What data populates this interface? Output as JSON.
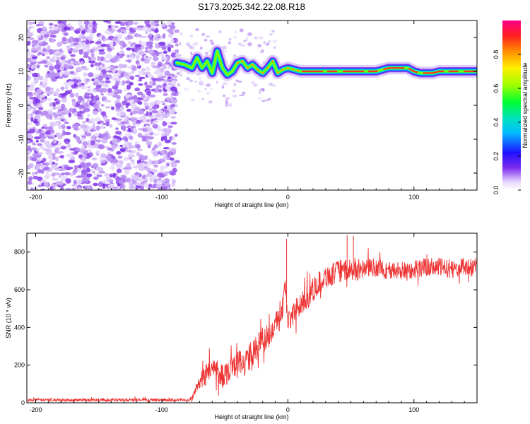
{
  "title": "S173.2025.342.22.08.R18",
  "colors": {
    "snr_line": "#ee3333",
    "axis": "#000000",
    "background": "#ffffff"
  },
  "chart_data": [
    {
      "type": "heatmap",
      "name": "spectrogram",
      "xlabel": "Height of straight line (km)",
      "ylabel": "Frequency (Hz)",
      "xlim": [
        -207,
        150
      ],
      "ylim": [
        -25,
        25
      ],
      "x_ticks": [
        "-200",
        "-100",
        "0",
        "100"
      ],
      "x_tick_values": [
        -200,
        -100,
        0,
        100
      ],
      "y_ticks": [
        "20",
        "10",
        "0",
        "-10",
        "-20"
      ],
      "y_tick_values": [
        20,
        10,
        0,
        -10,
        -20
      ],
      "noise_region_x": [
        -207,
        -88
      ],
      "ridge": {
        "x": [
          -88,
          -82,
          -76,
          -72,
          -68,
          -64,
          -60,
          -56,
          -52,
          -48,
          -44,
          -40,
          -36,
          -32,
          -28,
          -24,
          -20,
          -16,
          -12,
          -8,
          -4,
          0,
          5,
          10,
          20,
          40,
          60,
          70,
          80,
          90,
          95,
          100,
          105,
          110,
          115,
          120,
          130,
          140,
          150
        ],
        "y": [
          12.5,
          12,
          11,
          14,
          11,
          13,
          9.5,
          16,
          11,
          9,
          10,
          12.5,
          13,
          11,
          12,
          10.5,
          9.5,
          11,
          13,
          9.5,
          10.5,
          11,
          10.5,
          10,
          10,
          10,
          10,
          10,
          11,
          11,
          11,
          10,
          9.5,
          9.5,
          9.5,
          10,
          10,
          10,
          10
        ]
      },
      "colorbar": {
        "label": "Normalized spectral amplitude",
        "range": [
          0,
          1
        ],
        "ticks": [
          "0.0",
          "0.2",
          "0.4",
          "0.6",
          "0.8"
        ],
        "tick_values": [
          0,
          0.2,
          0.4,
          0.6,
          0.8
        ]
      }
    },
    {
      "type": "line",
      "name": "snr",
      "xlabel": "Height of straight line (km)",
      "ylabel": "SNR (10 * v/v)",
      "xlim": [
        -207,
        150
      ],
      "ylim": [
        0,
        900
      ],
      "x_ticks": [
        "-200",
        "-100",
        "0",
        "100"
      ],
      "x_tick_values": [
        -200,
        -100,
        0,
        100
      ],
      "y_ticks": [
        "0",
        "200",
        "400",
        "600",
        "800"
      ],
      "y_tick_values": [
        0,
        200,
        400,
        600,
        800
      ],
      "series": [
        {
          "name": "SNR",
          "x": [
            -207,
            -180,
            -150,
            -120,
            -100,
            -90,
            -80,
            -76,
            -72,
            -68,
            -64,
            -60,
            -56,
            -52,
            -48,
            -44,
            -40,
            -36,
            -32,
            -28,
            -24,
            -20,
            -16,
            -12,
            -8,
            -4,
            -2,
            0,
            4,
            8,
            12,
            16,
            20,
            25,
            30,
            35,
            40,
            45,
            50,
            60,
            70,
            80,
            90,
            100,
            110,
            120,
            130,
            140,
            150
          ],
          "y": [
            15,
            15,
            15,
            15,
            15,
            15,
            15,
            20,
            90,
            130,
            160,
            180,
            170,
            150,
            160,
            200,
            220,
            210,
            230,
            260,
            300,
            330,
            350,
            400,
            430,
            500,
            640,
            420,
            470,
            510,
            530,
            560,
            600,
            640,
            670,
            680,
            700,
            700,
            700,
            710,
            720,
            700,
            700,
            710,
            720,
            720,
            710,
            720,
            720
          ],
          "spread": [
            15,
            15,
            15,
            15,
            15,
            15,
            15,
            30,
            50,
            100,
            120,
            110,
            140,
            130,
            130,
            130,
            140,
            130,
            150,
            150,
            140,
            150,
            150,
            140,
            150,
            150,
            100,
            120,
            120,
            130,
            130,
            120,
            120,
            120,
            130,
            120,
            120,
            120,
            120,
            110,
            100,
            100,
            100,
            100,
            100,
            100,
            100,
            100,
            100
          ]
        }
      ],
      "spikes": [
        {
          "x": -1,
          "y": 870
        },
        {
          "x": 47,
          "y": 890
        },
        {
          "x": 52,
          "y": 885
        }
      ]
    }
  ]
}
